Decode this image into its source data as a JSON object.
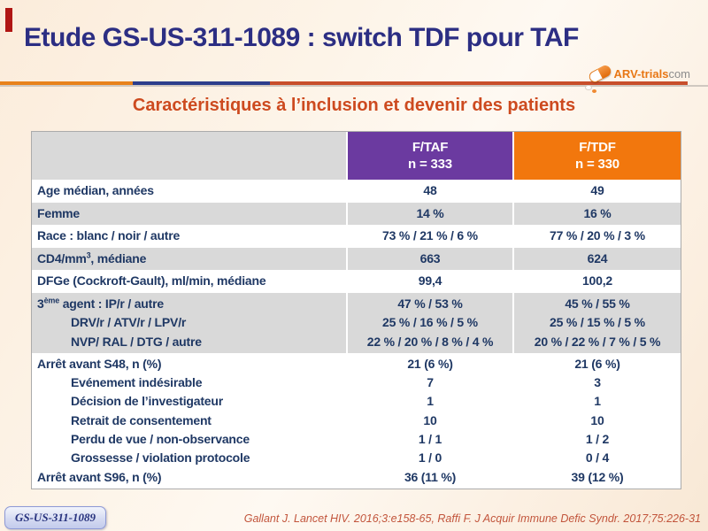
{
  "slide": {
    "title": "Etude GS-US-311-1089 : switch TDF pour TAF",
    "subtitle": "Caractéristiques à l’inclusion et devenir des patients",
    "badge": "GS-US-311-1089",
    "citation": "Gallant J. Lancet HIV. 2016;3:e158-65, Raffi F. J Acquir Immune Defic Syndr. 2017;75:226-31"
  },
  "logo": {
    "icon": "pill-capsule-icon",
    "brand": "ARV-trials",
    "suffix": "com"
  },
  "colors": {
    "title_blue": "#2c2e83",
    "subtitle_orange": "#cd4a1f",
    "header_ftaf_purple": "#6b3aa0",
    "header_ftdf_orange": "#f2770d",
    "row_shade_gray": "#d9d9d9",
    "table_text_navy": "#1f3864",
    "citation_red": "#c2553c",
    "corner_accent_red": "#b01513",
    "background_cream": "#fbeedf"
  },
  "table": {
    "header": {
      "col1": "",
      "cols": [
        {
          "name": "F/TAF",
          "n": "n = 333"
        },
        {
          "name": "F/TDF",
          "n": "n = 330"
        }
      ]
    },
    "groups": [
      {
        "shade": false,
        "lines": [
          {
            "label": [
              {
                "t": "Age médian, années"
              }
            ],
            "v1": "48",
            "v2": "49"
          }
        ]
      },
      {
        "shade": true,
        "lines": [
          {
            "label": [
              {
                "t": "Femme"
              }
            ],
            "v1": "14 %",
            "v2": "16 %"
          }
        ]
      },
      {
        "shade": false,
        "lines": [
          {
            "label": [
              {
                "t": "Race : blanc / noir / autre"
              }
            ],
            "v1": "73 % / 21 % / 6 %",
            "v2": "77 % / 20 % / 3 %"
          }
        ]
      },
      {
        "shade": true,
        "lines": [
          {
            "label": [
              {
                "t": "CD4/mm"
              },
              {
                "t": "3",
                "sup": true
              },
              {
                "t": ", médiane"
              }
            ],
            "v1": "663",
            "v2": "624"
          }
        ]
      },
      {
        "shade": false,
        "lines": [
          {
            "label": [
              {
                "t": "DFGe (Cockroft-Gault), ml/min, médiane"
              }
            ],
            "v1": "99,4",
            "v2": "100,2"
          }
        ]
      },
      {
        "shade": true,
        "lines": [
          {
            "label": [
              {
                "t": "3"
              },
              {
                "t": "ème",
                "sup": true
              },
              {
                "t": " agent : IP/r / autre"
              }
            ],
            "v1": "47 % / 53 %",
            "v2": "45 % / 55 %"
          },
          {
            "indent": true,
            "label": [
              {
                "t": "DRV/r / ATV/r / LPV/r"
              }
            ],
            "v1": "25 % / 16 % / 5 %",
            "v2": "25 % / 15 % / 5 %"
          },
          {
            "indent": true,
            "label": [
              {
                "t": "NVP/ RAL / DTG / autre"
              }
            ],
            "v1": "22 % / 20 % / 8 % / 4 %",
            "v2": "20 % / 22 % / 7 % / 5 %"
          }
        ]
      },
      {
        "shade": false,
        "lines": [
          {
            "label": [
              {
                "t": "Arrêt avant S48, n (%)"
              }
            ],
            "v1": "21 (6 %)",
            "v2": "21 (6 %)"
          },
          {
            "indent": true,
            "label": [
              {
                "t": "Evénement indésirable"
              }
            ],
            "v1": "7",
            "v2": "3"
          },
          {
            "indent": true,
            "label": [
              {
                "t": "Décision de l’investigateur"
              }
            ],
            "v1": "1",
            "v2": "1"
          },
          {
            "indent": true,
            "label": [
              {
                "t": "Retrait de consentement"
              }
            ],
            "v1": "10",
            "v2": "10"
          },
          {
            "indent": true,
            "label": [
              {
                "t": "Perdu de vue / non-observance"
              }
            ],
            "v1": "1 / 1",
            "v2": "1 / 2"
          },
          {
            "indent": true,
            "label": [
              {
                "t": "Grossesse / violation protocole"
              }
            ],
            "v1": "1 / 0",
            "v2": "0 / 4"
          },
          {
            "label": [
              {
                "t": "Arrêt avant S96, n (%)"
              }
            ],
            "v1": "36 (11 %)",
            "v2": "39 (12 %)"
          }
        ]
      }
    ]
  }
}
